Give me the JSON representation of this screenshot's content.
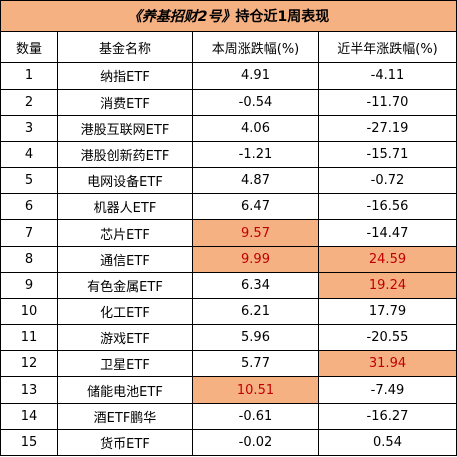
{
  "title": {
    "italic_part": "《养基招财2号》",
    "rest_part": "持仓近1周表现"
  },
  "colors": {
    "title_fill": "#f6b183",
    "highlight_fill": "#f6b183",
    "highlight_text": "#c00000",
    "border": "#000000"
  },
  "headers": [
    "数量",
    "基金名称",
    "本周涨跌幅(%)",
    "近半年涨跌幅(%)"
  ],
  "rows": [
    {
      "num": "1",
      "name": "纳指ETF",
      "week": "4.91",
      "half": "-4.11",
      "week_hl": false,
      "half_hl": false
    },
    {
      "num": "2",
      "name": "消费ETF",
      "week": "-0.54",
      "half": "-11.70",
      "week_hl": false,
      "half_hl": false
    },
    {
      "num": "3",
      "name": "港股互联网ETF",
      "week": "4.06",
      "half": "-27.19",
      "week_hl": false,
      "half_hl": false
    },
    {
      "num": "4",
      "name": "港股创新药ETF",
      "week": "-1.21",
      "half": "-15.71",
      "week_hl": false,
      "half_hl": false
    },
    {
      "num": "5",
      "name": "电网设备ETF",
      "week": "4.87",
      "half": "-0.72",
      "week_hl": false,
      "half_hl": false
    },
    {
      "num": "6",
      "name": "机器人ETF",
      "week": "6.47",
      "half": "-16.56",
      "week_hl": false,
      "half_hl": false
    },
    {
      "num": "7",
      "name": "芯片ETF",
      "week": "9.57",
      "half": "-14.47",
      "week_hl": true,
      "half_hl": false
    },
    {
      "num": "8",
      "name": "通信ETF",
      "week": "9.99",
      "half": "24.59",
      "week_hl": true,
      "half_hl": true
    },
    {
      "num": "9",
      "name": "有色金属ETF",
      "week": "6.34",
      "half": "19.24",
      "week_hl": false,
      "half_hl": true
    },
    {
      "num": "10",
      "name": "化工ETF",
      "week": "6.21",
      "half": "17.79",
      "week_hl": false,
      "half_hl": false
    },
    {
      "num": "11",
      "name": "游戏ETF",
      "week": "5.96",
      "half": "-20.55",
      "week_hl": false,
      "half_hl": false
    },
    {
      "num": "12",
      "name": "卫星ETF",
      "week": "5.77",
      "half": "31.94",
      "week_hl": false,
      "half_hl": true
    },
    {
      "num": "13",
      "name": "储能电池ETF",
      "week": "10.51",
      "half": "-7.49",
      "week_hl": true,
      "half_hl": false
    },
    {
      "num": "14",
      "name": "酒ETF鹏华",
      "week": "-0.61",
      "half": "-16.27",
      "week_hl": false,
      "half_hl": false
    },
    {
      "num": "15",
      "name": "货币ETF",
      "week": "-0.02",
      "half": "0.54",
      "week_hl": false,
      "half_hl": false
    }
  ]
}
